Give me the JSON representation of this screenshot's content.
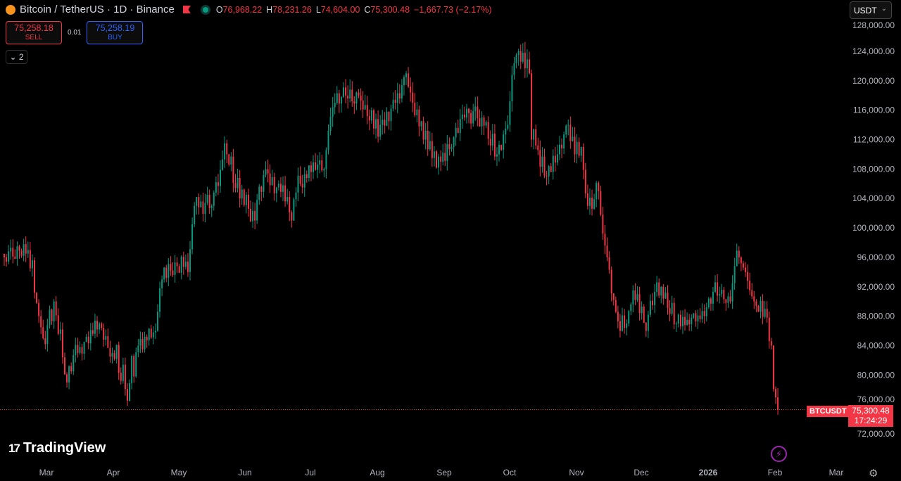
{
  "header": {
    "title": "Bitcoin / TetherUS · 1D · Binance",
    "o_label": "O",
    "o": "76,968.22",
    "h_label": "H",
    "h": "78,231.26",
    "l_label": "L",
    "l": "74,604.00",
    "c_label": "C",
    "c": "75,300.48",
    "change": "−1,667.73 (−2.17%)"
  },
  "trade": {
    "sell_price": "75,258.18",
    "sell_label": "SELL",
    "spread": "0.01",
    "buy_price": "75,258.19",
    "buy_label": "BUY"
  },
  "indicators_toggle": "2",
  "currency_select": "USDT",
  "brand": "TradingView",
  "last_price": {
    "symbol": "BTCUSDT",
    "price": "75,300.48",
    "countdown": "17:24:29"
  },
  "colors": {
    "up": "#089981",
    "down": "#f23645",
    "background": "#000000",
    "price_line": "#f23645"
  },
  "icons": [
    "bitcoin-icon",
    "flag-icon",
    "market-status-icon",
    "chevron-down-icon",
    "lightning-icon",
    "settings-icon"
  ],
  "chart_data": {
    "type": "candlestick",
    "interval": "1D",
    "ylim": [
      70000,
      128000
    ],
    "y_ticks": [
      "128,000.00",
      "124,000.00",
      "120,000.00",
      "116,000.00",
      "112,000.00",
      "108,000.00",
      "104,000.00",
      "100,000.00",
      "96,000.00",
      "92,000.00",
      "88,000.00",
      "84,000.00",
      "80,000.00",
      "76,000.00",
      "72,000.00"
    ],
    "x_ticks": [
      "Mar",
      "Apr",
      "May",
      "Jun",
      "Jul",
      "Aug",
      "Sep",
      "Oct",
      "Nov",
      "Dec",
      "2026",
      "Feb",
      "Mar"
    ],
    "grid": false,
    "last_candle": {
      "open": 76968.22,
      "high": 78231.26,
      "low": 74604.0,
      "close": 75300.48
    },
    "closes": [
      96000,
      95400,
      96800,
      97300,
      96100,
      95800,
      97500,
      96900,
      96200,
      97800,
      96500,
      97000,
      94500,
      95600,
      91200,
      89800,
      88000,
      86500,
      85000,
      84200,
      86800,
      88900,
      87300,
      90000,
      88100,
      85600,
      86200,
      82400,
      80100,
      79000,
      81200,
      80500,
      82700,
      84100,
      83000,
      83800,
      82900,
      84500,
      85200,
      84300,
      86100,
      85600,
      87400,
      86200,
      87000,
      86400,
      84800,
      85300,
      83700,
      82500,
      83000,
      82200,
      84100,
      80300,
      79200,
      81400,
      78100,
      76500,
      78900,
      82600,
      79800,
      83100,
      84000,
      84900,
      83500,
      85200,
      84700,
      86300,
      85100,
      85800,
      86000,
      88600,
      91800,
      93000,
      94600,
      93200,
      95100,
      94200,
      93600,
      95300,
      94800,
      93900,
      96100,
      94700,
      95400,
      94000,
      97100,
      100500,
      103000,
      104200,
      102800,
      103600,
      101900,
      103400,
      104500,
      102700,
      103000,
      104800,
      106200,
      105700,
      107900,
      109300,
      111500,
      110000,
      108600,
      109700,
      106100,
      105400,
      106800,
      104000,
      105200,
      103100,
      104500,
      102600,
      100900,
      102300,
      101000,
      103800,
      105600,
      104900,
      107200,
      108000,
      107400,
      105800,
      106900,
      104700,
      105500,
      106000,
      104900,
      105800,
      103600,
      104200,
      102100,
      101000,
      103900,
      104800,
      107100,
      106000,
      105500,
      107300,
      106800,
      108500,
      107600,
      108900,
      107900,
      108600,
      109200,
      107800,
      108000,
      110600,
      113200,
      115100,
      116400,
      117000,
      118300,
      116900,
      117800,
      119100,
      118000,
      117600,
      118800,
      117200,
      116900,
      118400,
      118000,
      117300,
      116100,
      116700,
      115200,
      114600,
      116000,
      113500,
      114800,
      112400,
      114000,
      114700,
      113900,
      115800,
      114500,
      116200,
      117400,
      117000,
      118300,
      117600,
      119400,
      120500,
      121000,
      119200,
      118400,
      117000,
      115300,
      116100,
      113800,
      114500,
      112000,
      113200,
      110700,
      111800,
      109500,
      110400,
      108200,
      109700,
      109000,
      110200,
      109100,
      111400,
      110700,
      111000,
      112300,
      113600,
      112900,
      114800,
      115400,
      115000,
      116200,
      115600,
      114200,
      115900,
      116500,
      114900,
      113800,
      115000,
      113900,
      114400,
      112100,
      111200,
      112800,
      109700,
      110000,
      111300,
      110600,
      112700,
      113500,
      114000,
      117200,
      120800,
      122400,
      123500,
      124000,
      122600,
      123800,
      121700,
      122900,
      121000,
      112000,
      113400,
      111200,
      110600,
      108300,
      109700,
      107100,
      107000,
      108400,
      107600,
      109800,
      108900,
      110000,
      111300,
      110800,
      112700,
      113900,
      114000,
      111800,
      112400,
      110000,
      111700,
      109800,
      111000,
      107900,
      104700,
      103000,
      104100,
      102600,
      103900,
      106100,
      105000,
      101800,
      99200,
      97600,
      96000,
      94300,
      91100,
      90200,
      88600,
      87300,
      86000,
      88100,
      86400,
      87000,
      88700,
      89600,
      91500,
      90200,
      91000,
      88400,
      89300,
      87100,
      86000,
      88200,
      90100,
      89500,
      91300,
      92600,
      90800,
      92000,
      90400,
      91200,
      89100,
      88300,
      89800,
      86900,
      87000,
      88200,
      86600,
      87900,
      86800,
      87500,
      86900,
      87800,
      88400,
      87300,
      88100,
      87600,
      88700,
      88000,
      89200,
      90400,
      89700,
      91300,
      92600,
      90800,
      91000,
      91600,
      90300,
      89800,
      90700,
      90000,
      92500,
      94800,
      96900,
      96000,
      95200,
      94600,
      94000,
      92800,
      91500,
      90700,
      90000,
      89400,
      88600,
      90100,
      87900,
      89000,
      87800,
      84600,
      84000,
      78100,
      76968.22,
      75300.48
    ]
  }
}
